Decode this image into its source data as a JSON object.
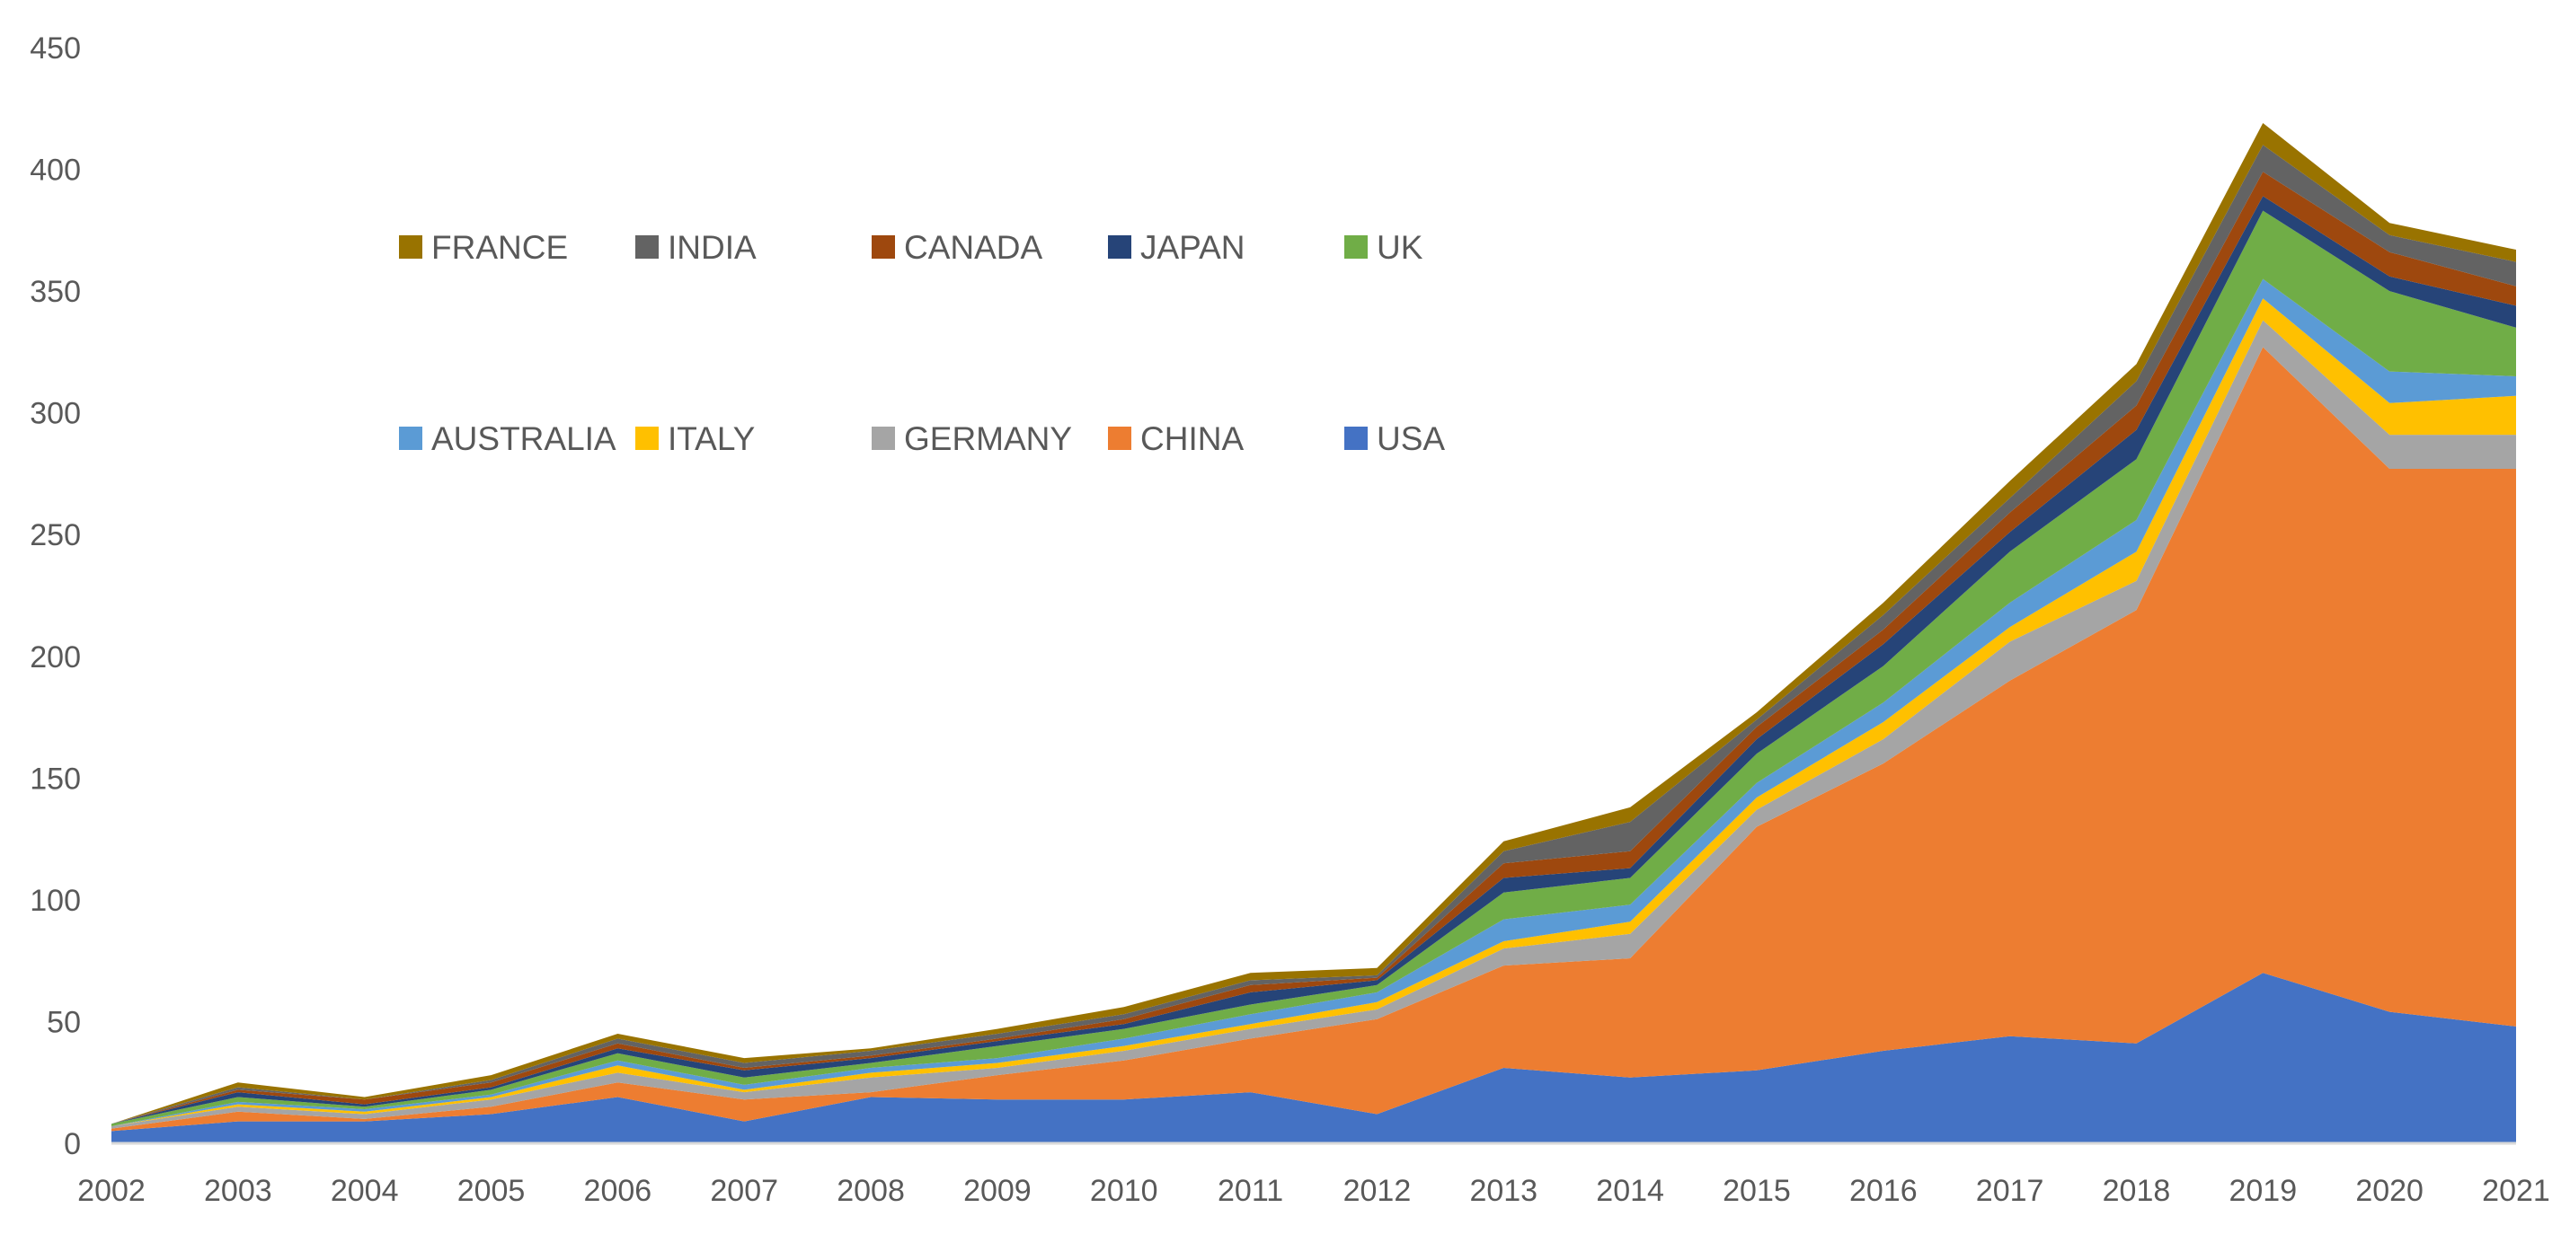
{
  "chart_data": {
    "type": "area",
    "stacked": true,
    "title": "",
    "xlabel": "",
    "ylabel": "",
    "ylim": [
      0,
      450
    ],
    "yticks": [
      0,
      50,
      100,
      150,
      200,
      250,
      300,
      350,
      400,
      450
    ],
    "grid": false,
    "legend_position": "top-left",
    "categories": [
      "2002",
      "2003",
      "2004",
      "2005",
      "2006",
      "2007",
      "2008",
      "2009",
      "2010",
      "2011",
      "2012",
      "2013",
      "2014",
      "2015",
      "2016",
      "2017",
      "2018",
      "2019",
      "2020",
      "2021"
    ],
    "series": [
      {
        "name": "USA",
        "color": "#4472C4",
        "values": [
          5,
          9,
          9,
          12,
          19,
          9,
          19,
          18,
          18,
          21,
          12,
          31,
          27,
          30,
          38,
          44,
          41,
          70,
          54,
          48
        ]
      },
      {
        "name": "CHINA",
        "color": "#ED7D31",
        "values": [
          1,
          4,
          1,
          3,
          6,
          9,
          2,
          10,
          16,
          22,
          39,
          42,
          49,
          100,
          118,
          146,
          178,
          257,
          223,
          229
        ]
      },
      {
        "name": "GERMANY",
        "color": "#A5A5A5",
        "values": [
          1,
          2,
          2,
          3,
          4,
          3,
          6,
          3,
          4,
          4,
          4,
          7,
          10,
          7,
          10,
          16,
          12,
          11,
          14,
          14
        ]
      },
      {
        "name": "ITALY",
        "color": "#FFC000",
        "values": [
          0,
          1,
          1,
          1,
          3,
          1,
          2,
          2,
          2,
          2,
          3,
          3,
          5,
          5,
          7,
          6,
          12,
          9,
          13,
          16
        ]
      },
      {
        "name": "AUSTRALIA",
        "color": "#5B9BD5",
        "values": [
          0,
          1,
          1,
          1,
          2,
          2,
          2,
          2,
          3,
          4,
          4,
          9,
          7,
          6,
          8,
          10,
          13,
          8,
          13,
          8
        ]
      },
      {
        "name": "UK",
        "color": "#70AD47",
        "values": [
          1,
          2,
          1,
          2,
          3,
          3,
          2,
          5,
          4,
          4,
          3,
          11,
          11,
          12,
          15,
          21,
          25,
          28,
          33,
          20
        ]
      },
      {
        "name": "JAPAN",
        "color": "#264478",
        "values": [
          0,
          2,
          1,
          1,
          2,
          3,
          2,
          2,
          2,
          5,
          2,
          6,
          4,
          6,
          9,
          8,
          12,
          6,
          6,
          9
        ]
      },
      {
        "name": "CANADA",
        "color": "#9E480E",
        "values": [
          0,
          1,
          2,
          2,
          2,
          1,
          1,
          1,
          2,
          3,
          1,
          6,
          7,
          5,
          6,
          8,
          10,
          10,
          10,
          8
        ]
      },
      {
        "name": "INDIA",
        "color": "#636363",
        "values": [
          0,
          1,
          0,
          1,
          2,
          2,
          2,
          2,
          2,
          2,
          1,
          5,
          12,
          3,
          6,
          6,
          10,
          11,
          7,
          10
        ]
      },
      {
        "name": "FRANCE",
        "color": "#997300",
        "values": [
          0,
          2,
          1,
          2,
          2,
          2,
          1,
          2,
          3,
          3,
          3,
          4,
          6,
          3,
          5,
          7,
          7,
          9,
          5,
          5
        ]
      }
    ],
    "legend_order": [
      "FRANCE",
      "INDIA",
      "CANADA",
      "JAPAN",
      "UK",
      "AUSTRALIA",
      "ITALY",
      "GERMANY",
      "CHINA",
      "USA"
    ]
  }
}
